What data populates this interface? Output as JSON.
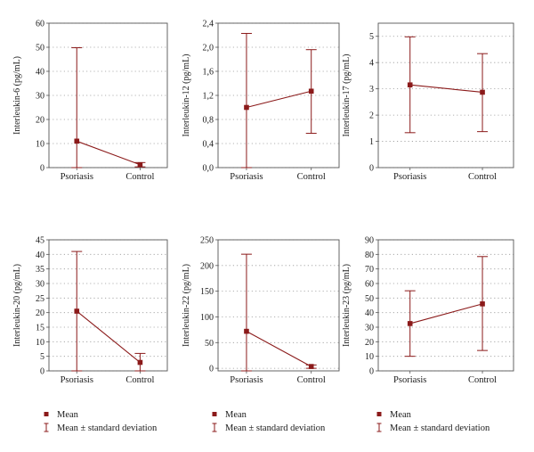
{
  "style": {
    "series_color": "#8b1a1a",
    "grid": "dotted",
    "frame_color": "#555555"
  },
  "legend": {
    "mean_label": "Mean",
    "sd_label": "Mean ± standard deviation"
  },
  "chart_data": [
    {
      "type": "line",
      "categories": [
        "Psoriasis",
        "Control"
      ],
      "ylabel": "Interleukin-6 (pg/mL)",
      "ylim": [
        0,
        60
      ],
      "yticks": [
        0,
        10,
        20,
        30,
        40,
        50,
        60
      ],
      "ytick_labels": [
        "0",
        "10",
        "20",
        "30",
        "40",
        "50",
        "60"
      ],
      "series": [
        {
          "name": "Mean",
          "values": [
            11,
            1.2
          ]
        }
      ],
      "error_bars": [
        {
          "low": 0,
          "high": 49.8
        },
        {
          "low": 0.3,
          "high": 2.1
        }
      ]
    },
    {
      "type": "line",
      "categories": [
        "Psoriasis",
        "Control"
      ],
      "ylabel": "Interleukin-12 (pg/mL)",
      "ylim": [
        0,
        2.4
      ],
      "yticks": [
        0,
        0.4,
        0.8,
        1.2,
        1.6,
        2.0,
        2.4
      ],
      "ytick_labels": [
        "0,0",
        "0,4",
        "0,8",
        "1,2",
        "1,6",
        "2,0",
        "2,4"
      ],
      "series": [
        {
          "name": "Mean",
          "values": [
            1.0,
            1.27
          ]
        }
      ],
      "error_bars": [
        {
          "low": 0,
          "high": 2.23
        },
        {
          "low": 0.57,
          "high": 1.96
        }
      ]
    },
    {
      "type": "line",
      "categories": [
        "Psoriasis",
        "Control"
      ],
      "ylabel": "Interleukin-17 (pg/mL)",
      "ylim": [
        0,
        5.5
      ],
      "yticks": [
        0,
        1,
        2,
        3,
        4,
        5
      ],
      "ytick_labels": [
        "0",
        "1",
        "2",
        "3",
        "4",
        "5"
      ],
      "series": [
        {
          "name": "Mean",
          "values": [
            3.15,
            2.87
          ]
        }
      ],
      "error_bars": [
        {
          "low": 1.33,
          "high": 4.98
        },
        {
          "low": 1.37,
          "high": 4.34
        }
      ]
    },
    {
      "type": "line",
      "categories": [
        "Psoriasis",
        "Control"
      ],
      "ylabel": "Interleukin-20 (pg/mL)",
      "ylim": [
        0,
        45
      ],
      "yticks": [
        0,
        5,
        10,
        15,
        20,
        25,
        30,
        35,
        40,
        45
      ],
      "ytick_labels": [
        "0",
        "5",
        "10",
        "15",
        "20",
        "25",
        "30",
        "35",
        "40",
        "45"
      ],
      "series": [
        {
          "name": "Mean",
          "values": [
            20.5,
            2.9
          ]
        }
      ],
      "error_bars": [
        {
          "low": 0,
          "high": 41
        },
        {
          "low": 0,
          "high": 6
        }
      ]
    },
    {
      "type": "line",
      "categories": [
        "Psoriasis",
        "Control"
      ],
      "ylabel": "Interleukin-22 (pg/mL)",
      "ylim": [
        -5,
        250
      ],
      "yticks": [
        0,
        50,
        100,
        150,
        200,
        250
      ],
      "ytick_labels": [
        "0",
        "50",
        "100",
        "150",
        "200",
        "250"
      ],
      "series": [
        {
          "name": "Mean",
          "values": [
            72,
            3.5
          ]
        }
      ],
      "error_bars": [
        {
          "low": -5,
          "high": 222
        },
        {
          "low": 0,
          "high": 6.5
        }
      ]
    },
    {
      "type": "line",
      "categories": [
        "Psoriasis",
        "Control"
      ],
      "ylabel": "Interleukin-23 (pg/mL)",
      "ylim": [
        0,
        90
      ],
      "yticks": [
        0,
        10,
        20,
        30,
        40,
        50,
        60,
        70,
        80,
        90
      ],
      "ytick_labels": [
        "0",
        "10",
        "20",
        "30",
        "40",
        "50",
        "60",
        "70",
        "80",
        "90"
      ],
      "series": [
        {
          "name": "Mean",
          "values": [
            32.5,
            46
          ]
        }
      ],
      "error_bars": [
        {
          "low": 10,
          "high": 55
        },
        {
          "low": 14,
          "high": 78.5
        }
      ]
    }
  ]
}
